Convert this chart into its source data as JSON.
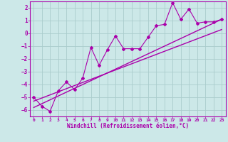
{
  "xlabel": "Windchill (Refroidissement éolien,°C)",
  "bg_color": "#cce8e8",
  "grid_color": "#aacccc",
  "line_color": "#aa00aa",
  "xlim": [
    -0.5,
    23.5
  ],
  "ylim": [
    -6.5,
    2.5
  ],
  "xticks": [
    0,
    1,
    2,
    3,
    4,
    5,
    6,
    7,
    8,
    9,
    10,
    11,
    12,
    13,
    14,
    15,
    16,
    17,
    18,
    19,
    20,
    21,
    22,
    23
  ],
  "yticks": [
    -6,
    -5,
    -4,
    -3,
    -2,
    -1,
    0,
    1,
    2
  ],
  "data_x": [
    0,
    1,
    2,
    3,
    4,
    5,
    6,
    7,
    8,
    9,
    10,
    11,
    12,
    13,
    14,
    15,
    16,
    17,
    18,
    19,
    20,
    21,
    22,
    23
  ],
  "data_y": [
    -5.0,
    -5.7,
    -6.1,
    -4.5,
    -3.8,
    -4.4,
    -3.5,
    -1.1,
    -2.5,
    -1.3,
    -0.2,
    -1.2,
    -1.2,
    -1.2,
    -0.3,
    0.6,
    0.7,
    2.4,
    1.1,
    1.9,
    0.8,
    0.9,
    0.9,
    1.1
  ],
  "trend1_x": [
    0,
    23
  ],
  "trend1_y": [
    -5.8,
    1.1
  ],
  "trend2_x": [
    0,
    23
  ],
  "trend2_y": [
    -5.3,
    0.3
  ]
}
